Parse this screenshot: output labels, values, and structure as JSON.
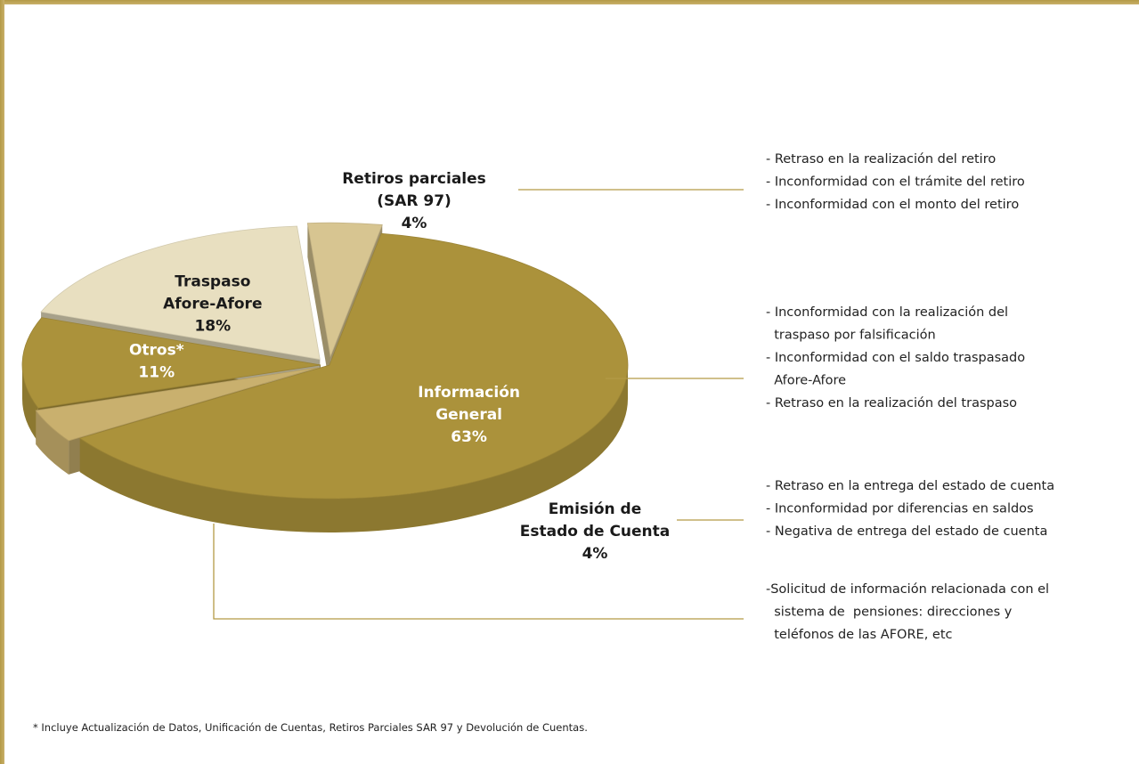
{
  "chart_data": {
    "type": "pie",
    "slices": [
      {
        "label_lines": [
          "Información",
          "General"
        ],
        "value": 63,
        "value_label": "63%",
        "color": "#ab923b"
      },
      {
        "label_lines": [
          "Retiros parciales",
          "(SAR 97)"
        ],
        "value": 4,
        "value_label": "4%",
        "color": "#c9b06e"
      },
      {
        "label_lines": [
          "Otros*"
        ],
        "value": 11,
        "value_label": "11%",
        "color": "#ab923b"
      },
      {
        "label_lines": [
          "Traspaso",
          "Afore-Afore"
        ],
        "value": 18,
        "value_label": "18%",
        "color": "#e8dfc0"
      },
      {
        "label_lines": [
          "Emisión de",
          "Estado de Cuenta"
        ],
        "value": 4,
        "value_label": "4%",
        "color": "#d7c591"
      }
    ],
    "annotations": [
      {
        "lines": [
          "- Retraso en la realización del retiro",
          "- Inconformidad con el trámite del retiro",
          "- Inconformidad con el monto del retiro"
        ]
      },
      {
        "lines": [
          "- Inconformidad con la realización del",
          "  traspaso por falsificación",
          "- Inconformidad con el saldo traspasado",
          "  Afore-Afore",
          "- Retraso en la realización del traspaso"
        ]
      },
      {
        "lines": [
          "- Retraso en la entrega del estado de cuenta",
          "- Inconformidad por diferencias en saldos",
          "- Negativa de entrega del estado de cuenta"
        ]
      },
      {
        "lines": [
          "-Solicitud de información relacionada con el",
          "  sistema de  pensiones: direcciones y",
          "  teléfonos de las AFORE, etc"
        ]
      }
    ],
    "footnote": "* Incluye Actualización de Datos, Unificación de Cuentas, Retiros Parciales SAR 97 y Devolución de Cuentas.",
    "colors": {
      "frame": "#b49a46",
      "leader_line": "#b49a46",
      "text_dark": "#1a1a1a",
      "text_light": "#ffffff"
    }
  }
}
